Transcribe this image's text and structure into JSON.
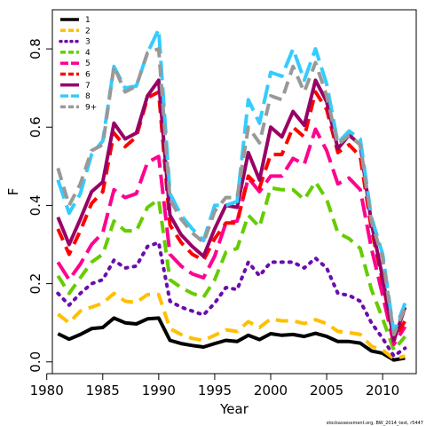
{
  "chart_data": {
    "type": "line",
    "xlabel": "Year",
    "ylabel": "F",
    "xlim": [
      1980.5,
      2013
    ],
    "ylim": [
      -0.03,
      0.9
    ],
    "x_ticks": [
      1980,
      1985,
      1990,
      1995,
      2000,
      2005,
      2010
    ],
    "y_ticks": [
      0.0,
      0.2,
      0.4,
      0.6,
      0.8
    ],
    "y_tick_labels": [
      "0.0",
      "0.2",
      "0.4",
      "0.6",
      "0.8"
    ],
    "legend_position": "top-left",
    "grid": false,
    "footnote": "stockassessment.org, BW_2014_test, r5447",
    "x": [
      1981,
      1982,
      1983,
      1984,
      1985,
      1986,
      1987,
      1988,
      1989,
      1990,
      1991,
      1992,
      1993,
      1994,
      1995,
      1996,
      1997,
      1998,
      1999,
      2000,
      2001,
      2002,
      2003,
      2004,
      2005,
      2006,
      2007,
      2008,
      2009,
      2010,
      2011,
      2012
    ],
    "series": [
      {
        "name": "1",
        "color": "#000000",
        "dash": "solid",
        "values": [
          0.072,
          0.058,
          0.07,
          0.085,
          0.088,
          0.112,
          0.1,
          0.097,
          0.11,
          0.112,
          0.055,
          0.047,
          0.042,
          0.038,
          0.047,
          0.055,
          0.052,
          0.068,
          0.057,
          0.072,
          0.068,
          0.07,
          0.065,
          0.073,
          0.065,
          0.052,
          0.052,
          0.048,
          0.028,
          0.022,
          0.005,
          0.01
        ]
      },
      {
        "name": "2",
        "color": "#ffc000",
        "dash": "dash",
        "values": [
          0.122,
          0.1,
          0.13,
          0.14,
          0.15,
          0.175,
          0.155,
          0.152,
          0.172,
          0.172,
          0.085,
          0.07,
          0.06,
          0.055,
          0.068,
          0.082,
          0.078,
          0.103,
          0.088,
          0.11,
          0.105,
          0.105,
          0.098,
          0.108,
          0.098,
          0.078,
          0.075,
          0.07,
          0.04,
          0.03,
          0.008,
          0.015
        ]
      },
      {
        "name": "3",
        "color": "#6a0dad",
        "dash": "dot",
        "values": [
          0.175,
          0.145,
          0.175,
          0.2,
          0.21,
          0.26,
          0.24,
          0.245,
          0.295,
          0.305,
          0.155,
          0.14,
          0.13,
          0.12,
          0.15,
          0.19,
          0.185,
          0.255,
          0.22,
          0.255,
          0.255,
          0.255,
          0.24,
          0.265,
          0.24,
          0.175,
          0.17,
          0.155,
          0.1,
          0.06,
          0.015,
          0.035
        ]
      },
      {
        "name": "4",
        "color": "#66cc00",
        "dash": "dash",
        "values": [
          0.22,
          0.175,
          0.215,
          0.255,
          0.275,
          0.36,
          0.335,
          0.335,
          0.395,
          0.415,
          0.21,
          0.19,
          0.175,
          0.165,
          0.21,
          0.28,
          0.29,
          0.375,
          0.345,
          0.445,
          0.44,
          0.44,
          0.415,
          0.46,
          0.415,
          0.33,
          0.315,
          0.29,
          0.185,
          0.11,
          0.03,
          0.065
        ]
      },
      {
        "name": "5",
        "color": "#ff0090",
        "dash": "longdash",
        "values": [
          0.255,
          0.21,
          0.25,
          0.3,
          0.33,
          0.44,
          0.42,
          0.43,
          0.51,
          0.525,
          0.275,
          0.245,
          0.225,
          0.215,
          0.27,
          0.355,
          0.36,
          0.47,
          0.435,
          0.475,
          0.475,
          0.52,
          0.505,
          0.595,
          0.54,
          0.455,
          0.47,
          0.44,
          0.29,
          0.17,
          0.045,
          0.09
        ]
      },
      {
        "name": "6",
        "color": "#ff0000",
        "dash": "dash",
        "values": [
          0.34,
          0.275,
          0.335,
          0.405,
          0.435,
          0.585,
          0.55,
          0.575,
          0.675,
          0.69,
          0.35,
          0.305,
          0.275,
          0.26,
          0.315,
          0.355,
          0.355,
          0.475,
          0.445,
          0.53,
          0.53,
          0.6,
          0.575,
          0.69,
          0.645,
          0.535,
          0.555,
          0.525,
          0.34,
          0.205,
          0.055,
          0.105
        ]
      },
      {
        "name": "7",
        "color": "#990066",
        "dash": "solid",
        "values": [
          0.37,
          0.3,
          0.365,
          0.435,
          0.46,
          0.61,
          0.57,
          0.585,
          0.68,
          0.72,
          0.375,
          0.325,
          0.295,
          0.27,
          0.34,
          0.4,
          0.395,
          0.535,
          0.465,
          0.6,
          0.575,
          0.64,
          0.605,
          0.72,
          0.665,
          0.545,
          0.58,
          0.555,
          0.355,
          0.215,
          0.055,
          0.14
        ]
      },
      {
        "name": "8",
        "color": "#33ccff",
        "dash": "longdash",
        "values": [
          0.465,
          0.38,
          0.43,
          0.53,
          0.565,
          0.755,
          0.7,
          0.705,
          0.79,
          0.85,
          0.43,
          0.375,
          0.34,
          0.31,
          0.4,
          0.4,
          0.41,
          0.67,
          0.61,
          0.74,
          0.73,
          0.8,
          0.72,
          0.8,
          0.71,
          0.56,
          0.59,
          0.57,
          0.37,
          0.275,
          0.075,
          0.15
        ]
      },
      {
        "name": "9+",
        "color": "#999999",
        "dash": "dash",
        "values": [
          0.495,
          0.4,
          0.455,
          0.54,
          0.555,
          0.755,
          0.69,
          0.705,
          0.79,
          0.8,
          0.415,
          0.365,
          0.33,
          0.305,
          0.385,
          0.42,
          0.42,
          0.6,
          0.56,
          0.68,
          0.67,
          0.755,
          0.69,
          0.765,
          0.68,
          0.555,
          0.58,
          0.555,
          0.36,
          0.265,
          0.07,
          0.14
        ]
      }
    ]
  }
}
